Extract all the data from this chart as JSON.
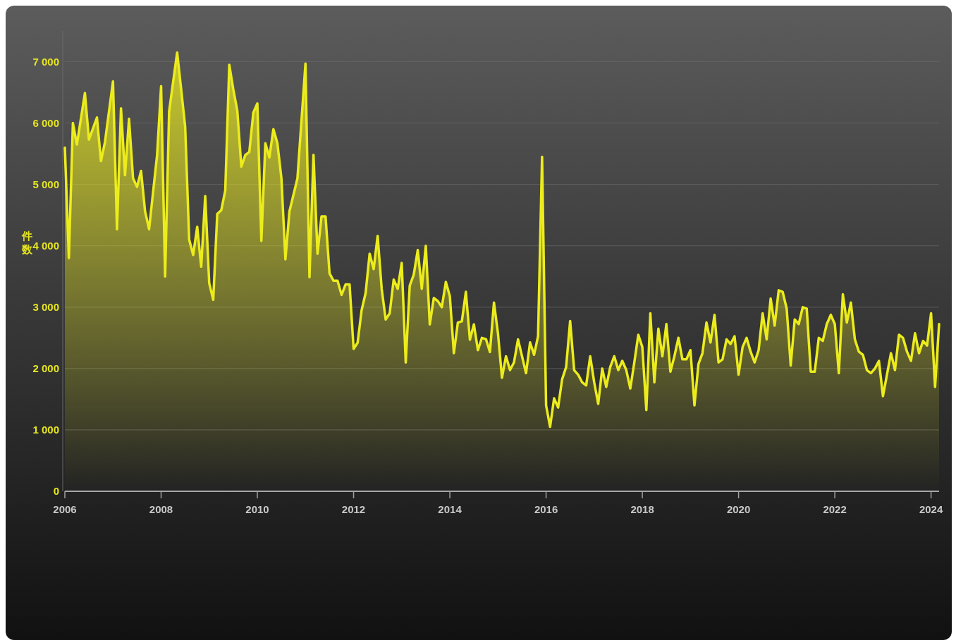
{
  "chart_data": {
    "type": "area",
    "ylabel": "件数",
    "grid": "y",
    "xlim": [
      "2006-01",
      "2024-03"
    ],
    "ylim": [
      0,
      7500
    ],
    "xticks": [
      "2006",
      "2008",
      "2010",
      "2012",
      "2014",
      "2016",
      "2018",
      "2020",
      "2022",
      "2024"
    ],
    "yticks": [
      0,
      {
        "value": 1000,
        "label": "1 000"
      },
      {
        "value": 2000,
        "label": "2 000"
      },
      {
        "value": 3000,
        "label": "3 000"
      },
      {
        "value": 4000,
        "label": "4 000"
      },
      {
        "value": 5000,
        "label": "5 000"
      },
      {
        "value": 6000,
        "label": "6 000"
      },
      {
        "value": 7000,
        "label": "7 000"
      }
    ],
    "x": [
      "2006-01",
      "2006-02",
      "2006-03",
      "2006-04",
      "2006-06",
      "2006-07",
      "2006-09",
      "2006-10",
      "2006-11",
      "2007-01",
      "2007-02",
      "2007-03",
      "2007-04",
      "2007-05",
      "2007-06",
      "2007-07",
      "2007-08",
      "2007-09",
      "2007-10",
      "2007-12",
      "2008-01",
      "2008-02",
      "2008-03",
      "2008-05",
      "2008-06",
      "2008-07",
      "2008-08",
      "2008-09",
      "2008-10",
      "2008-11",
      "2008-12",
      "2009-01",
      "2009-02",
      "2009-03",
      "2009-04",
      "2009-05",
      "2009-06",
      "2009-07",
      "2009-08",
      "2009-09",
      "2009-10",
      "2009-11",
      "2009-12",
      "2010-01",
      "2010-02",
      "2010-03",
      "2010-04",
      "2010-05",
      "2010-06",
      "2010-07",
      "2010-08",
      "2010-09",
      "2010-11",
      "2011-01",
      "2011-02",
      "2011-03",
      "2011-04",
      "2011-05",
      "2011-06",
      "2011-07",
      "2011-08",
      "2011-09",
      "2011-10",
      "2011-11",
      "2011-12",
      "2012-01",
      "2012-02",
      "2012-03",
      "2012-04",
      "2012-05",
      "2012-06",
      "2012-07",
      "2012-08",
      "2012-09",
      "2012-10",
      "2012-11",
      "2012-12",
      "2013-01",
      "2013-02",
      "2013-03",
      "2013-04",
      "2013-05",
      "2013-06",
      "2013-07",
      "2013-08",
      "2013-09",
      "2013-10",
      "2013-11",
      "2013-12",
      "2014-01",
      "2014-02",
      "2014-03",
      "2014-04",
      "2014-05",
      "2014-06",
      "2014-07",
      "2014-08",
      "2014-09",
      "2014-10",
      "2014-11",
      "2014-12",
      "2015-01",
      "2015-02",
      "2015-03",
      "2015-04",
      "2015-05",
      "2015-06",
      "2015-07",
      "2015-08",
      "2015-09",
      "2015-10",
      "2015-11",
      "2015-12",
      "2016-01",
      "2016-02",
      "2016-03",
      "2016-04",
      "2016-05",
      "2016-06",
      "2016-07",
      "2016-08",
      "2016-09",
      "2016-10",
      "2016-11",
      "2016-12",
      "2017-01",
      "2017-02",
      "2017-03",
      "2017-04",
      "2017-05",
      "2017-06",
      "2017-07",
      "2017-08",
      "2017-09",
      "2017-10",
      "2017-11",
      "2017-12",
      "2018-01",
      "2018-02",
      "2018-03",
      "2018-04",
      "2018-05",
      "2018-06",
      "2018-07",
      "2018-08",
      "2018-09",
      "2018-10",
      "2018-11",
      "2018-12",
      "2019-01",
      "2019-02",
      "2019-03",
      "2019-04",
      "2019-05",
      "2019-06",
      "2019-07",
      "2019-08",
      "2019-09",
      "2019-10",
      "2019-11",
      "2019-12",
      "2020-01",
      "2020-02",
      "2020-03",
      "2020-04",
      "2020-05",
      "2020-06",
      "2020-07",
      "2020-08",
      "2020-09",
      "2020-10",
      "2020-11",
      "2020-12",
      "2021-01",
      "2021-02",
      "2021-03",
      "2021-04",
      "2021-05",
      "2021-06",
      "2021-07",
      "2021-08",
      "2021-09",
      "2021-10",
      "2021-11",
      "2021-12",
      "2022-01",
      "2022-02",
      "2022-03",
      "2022-04",
      "2022-05",
      "2022-06",
      "2022-07",
      "2022-08",
      "2022-09",
      "2022-10",
      "2022-11",
      "2022-12",
      "2023-01",
      "2023-02",
      "2023-03",
      "2023-04",
      "2023-05",
      "2023-06",
      "2023-07",
      "2023-08",
      "2023-09",
      "2023-10",
      "2023-11",
      "2023-12",
      "2024-01",
      "2024-02",
      "2024-03"
    ],
    "series": [
      {
        "color": "#ecec1c",
        "values": [
          5600,
          3800,
          6000,
          5650,
          6490,
          5730,
          6090,
          5380,
          5690,
          6680,
          4270,
          6240,
          5150,
          6070,
          5100,
          4960,
          5220,
          4560,
          4270,
          5480,
          6600,
          3500,
          6190,
          7150,
          6550,
          5940,
          4100,
          3850,
          4310,
          3660,
          4810,
          3390,
          3120,
          4520,
          4580,
          4900,
          6950,
          6550,
          6200,
          5290,
          5480,
          5530,
          6170,
          6320,
          4080,
          5670,
          5440,
          5900,
          5670,
          5100,
          3780,
          4560,
          5100,
          6970,
          3490,
          5480,
          3870,
          4480,
          4480,
          3550,
          3430,
          3430,
          3200,
          3370,
          3370,
          2320,
          2420,
          2950,
          3230,
          3870,
          3620,
          4160,
          3300,
          2800,
          2900,
          3450,
          3300,
          3720,
          2100,
          3350,
          3530,
          3930,
          3300,
          4000,
          2720,
          3150,
          3100,
          3000,
          3410,
          3180,
          2250,
          2750,
          2770,
          3250,
          2470,
          2720,
          2300,
          2500,
          2480,
          2270,
          3075,
          2575,
          1850,
          2200,
          1975,
          2100,
          2475,
          2200,
          1925,
          2425,
          2225,
          2525,
          5450,
          1400,
          1050,
          1515,
          1365,
          1825,
          2025,
          2775,
          1975,
          1900,
          1775,
          1725,
          2200,
          1775,
          1425,
          2000,
          1700,
          2025,
          2200,
          1975,
          2125,
          1975,
          1675,
          2100,
          2550,
          2350,
          1325,
          2900,
          1775,
          2650,
          2200,
          2725,
          1950,
          2200,
          2500,
          2150,
          2150,
          2300,
          1400,
          2075,
          2250,
          2750,
          2425,
          2875,
          2100,
          2150,
          2475,
          2400,
          2525,
          1900,
          2350,
          2500,
          2275,
          2100,
          2300,
          2900,
          2475,
          3140,
          2700,
          3275,
          3250,
          2975,
          2050,
          2800,
          2725,
          3000,
          2975,
          1950,
          1950,
          2500,
          2450,
          2725,
          2875,
          2725,
          1925,
          3210,
          2750,
          3075,
          2475,
          2275,
          2225,
          1975,
          1925,
          2000,
          2125,
          1550,
          1900,
          2250,
          1975,
          2550,
          2500,
          2275,
          2125,
          2575,
          2250,
          2450,
          2375,
          2900,
          1700,
          2725
        ]
      }
    ]
  }
}
